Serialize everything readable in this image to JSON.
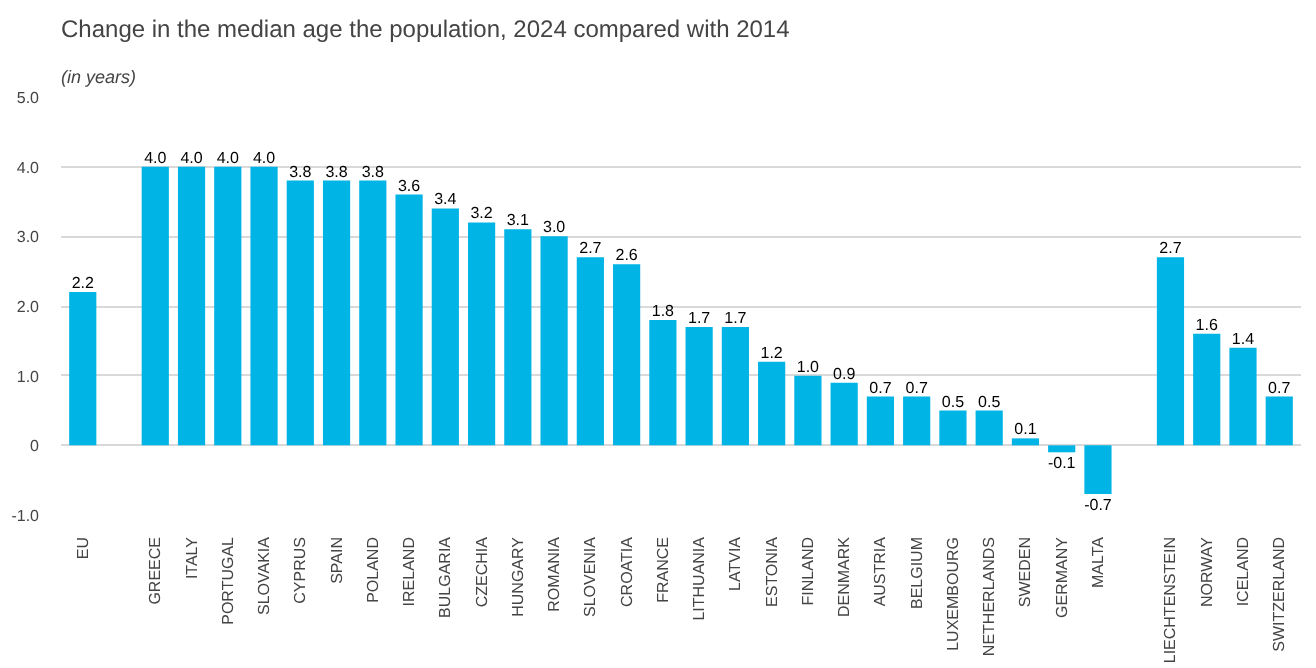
{
  "chart_data": {
    "type": "bar",
    "title": "Change in the median age the population, 2024 compared with 2014",
    "subtitle": "(in years)",
    "categories": [
      "EU",
      null,
      "GREECE",
      "ITALY",
      "PORTUGAL",
      "SLOVAKIA",
      "CYPRUS",
      "SPAIN",
      "POLAND",
      "IRELAND",
      "BULGARIA",
      "CZECHIA",
      "HUNGARY",
      "ROMANIA",
      "SLOVENIA",
      "CROATIA",
      "FRANCE",
      "LITHUANIA",
      "LATVIA",
      "ESTONIA",
      "FINLAND",
      "DENMARK",
      "AUSTRIA",
      "BELGIUM",
      "LUXEMBOURG",
      "NETHERLANDS",
      "SWEDEN",
      "GERMANY",
      "MALTA",
      null,
      "LIECHTENSTEIN",
      "NORWAY",
      "ICELAND",
      "SWITZERLAND"
    ],
    "values": [
      2.2,
      null,
      4.0,
      4.0,
      4.0,
      4.0,
      3.8,
      3.8,
      3.8,
      3.6,
      3.4,
      3.2,
      3.1,
      3.0,
      2.7,
      2.6,
      1.8,
      1.7,
      1.7,
      1.2,
      1.0,
      0.9,
      0.7,
      0.7,
      0.5,
      0.5,
      0.1,
      -0.1,
      -0.7,
      null,
      2.7,
      1.6,
      1.4,
      0.7
    ],
    "value_labels": [
      "2.2",
      null,
      "4.0",
      "4.0",
      "4.0",
      "4.0",
      "3.8",
      "3.8",
      "3.8",
      "3.6",
      "3.4",
      "3.2",
      "3.1",
      "3.0",
      "2.7",
      "2.6",
      "1.8",
      "1.7",
      "1.7",
      "1.2",
      "1.0",
      "0.9",
      "0.7",
      "0.7",
      "0.5",
      "0.5",
      "0.1",
      "-0.1",
      "-0.7",
      null,
      "2.7",
      "1.6",
      "1.4",
      "0.7"
    ],
    "color": "#00b4e6",
    "ylim": [
      -1.0,
      5.0
    ],
    "yticks": [
      {
        "value": -1.0,
        "label": "-1.0"
      },
      {
        "value": 0,
        "label": "0"
      },
      {
        "value": 1.0,
        "label": "1.0"
      },
      {
        "value": 2.0,
        "label": "2.0"
      },
      {
        "value": 3.0,
        "label": "3.0"
      },
      {
        "value": 4.0,
        "label": "4.0"
      },
      {
        "value": 5.0,
        "label": "5.0"
      }
    ],
    "grid": "y"
  }
}
